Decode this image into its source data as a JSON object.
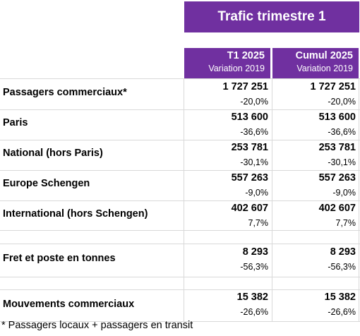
{
  "title": "Trafic trimestre 1",
  "columns": [
    {
      "heading": "T1 2025",
      "subheading": "Variation 2019"
    },
    {
      "heading": "Cumul 2025",
      "subheading": "Variation 2019"
    }
  ],
  "rows": [
    {
      "label": "Passagers commerciaux*",
      "values": [
        "1 727 251",
        "1 727 251"
      ],
      "variations": [
        "-20,0%",
        "-20,0%"
      ]
    },
    {
      "label": "Paris",
      "values": [
        "513 600",
        "513 600"
      ],
      "variations": [
        "-36,6%",
        "-36,6%"
      ]
    },
    {
      "label": "National (hors Paris)",
      "values": [
        "253 781",
        "253 781"
      ],
      "variations": [
        "-30,1%",
        "-30,1%"
      ]
    },
    {
      "label": "Europe Schengen",
      "values": [
        "557 263",
        "557 263"
      ],
      "variations": [
        "-9,0%",
        "-9,0%"
      ]
    },
    {
      "label": "International (hors Schengen)",
      "values": [
        "402 607",
        "402 607"
      ],
      "variations": [
        "7,7%",
        "7,7%"
      ]
    },
    {
      "label": "Fret et poste en tonnes",
      "values": [
        "8 293",
        "8 293"
      ],
      "variations": [
        "-56,3%",
        "-56,3%"
      ]
    },
    {
      "label": "Mouvements commerciaux",
      "values": [
        "15 382",
        "15 382"
      ],
      "variations": [
        "-26,6%",
        "-26,6%"
      ]
    }
  ],
  "footnote": "* Passagers locaux + passagers en transit",
  "colors": {
    "accent": "#7030a0",
    "gridline": "#d9d9d9"
  }
}
